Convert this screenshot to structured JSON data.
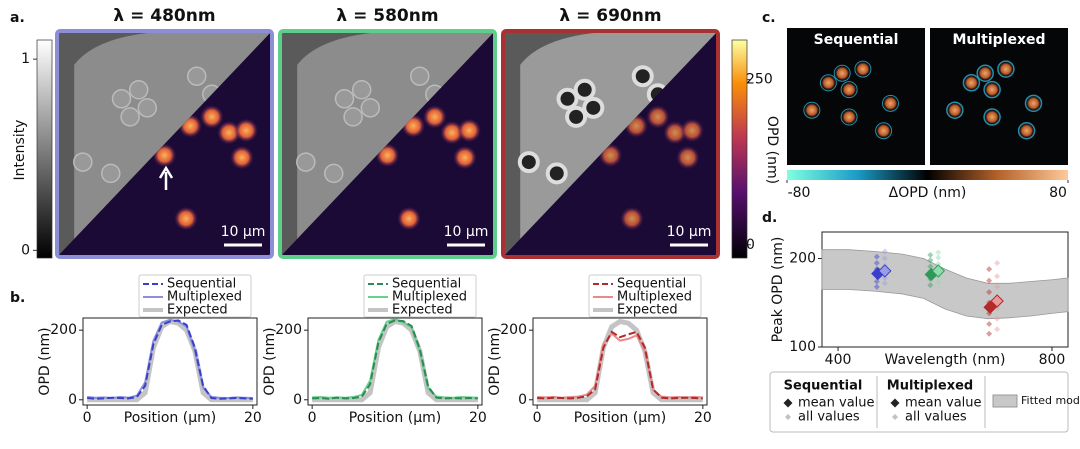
{
  "panel_labels": [
    "a.",
    "b.",
    "c.",
    "d."
  ],
  "panel_a": {
    "titles": [
      "λ = 480nm",
      "λ = 580nm",
      "λ = 690nm"
    ],
    "scale_bar": "10 μm",
    "intensity_bar": {
      "label": "Intensity",
      "lim": [
        -0.04,
        1.1
      ],
      "ticks": [
        0,
        1
      ]
    },
    "opd_bar": {
      "label": "OPD (nm)",
      "lim": [
        -20,
        310
      ],
      "ticks": [
        0,
        250
      ]
    }
  },
  "panel_c": {
    "titles": [
      "Sequential",
      "Multiplexed"
    ],
    "colorbar": {
      "label": "ΔOPD (nm)",
      "lim": [
        -80,
        80
      ],
      "ticks": [
        -80,
        80
      ]
    }
  },
  "chart_data": [
    {
      "type": "line",
      "xlabel": "Position (μm)",
      "ylabel": "OPD (nm)",
      "x": [
        0,
        1,
        2,
        3,
        4,
        5,
        6,
        7,
        8,
        9,
        10,
        11,
        12,
        13,
        14,
        15,
        16,
        17,
        18,
        19,
        20
      ],
      "xlim": [
        -0.5,
        20.5
      ],
      "ylim": [
        -15,
        235
      ],
      "xticks": [
        0,
        20
      ],
      "yticks": [
        0,
        200
      ],
      "series": [
        {
          "name": "Sequential",
          "color": "#3a3fc9",
          "dash": true,
          "values": [
            5,
            3,
            4,
            6,
            5,
            4,
            8,
            40,
            160,
            215,
            225,
            228,
            215,
            150,
            40,
            5,
            3,
            4,
            5,
            4,
            3
          ]
        },
        {
          "name": "Multiplexed",
          "color": "#8b8fe0",
          "values": [
            8,
            6,
            7,
            5,
            8,
            6,
            12,
            50,
            170,
            222,
            230,
            225,
            210,
            140,
            35,
            8,
            6,
            5,
            7,
            6,
            5
          ]
        },
        {
          "name": "Expected",
          "color": "#c4c4c4",
          "values": [
            0,
            0,
            0,
            0,
            0,
            0,
            0,
            20,
            150,
            210,
            225,
            220,
            200,
            140,
            20,
            0,
            0,
            0,
            0,
            0,
            0
          ]
        }
      ]
    },
    {
      "type": "line",
      "xlabel": "Position (μm)",
      "ylabel": "OPD (nm)",
      "x": [
        0,
        1,
        2,
        3,
        4,
        5,
        6,
        7,
        8,
        9,
        10,
        11,
        12,
        13,
        14,
        15,
        16,
        17,
        18,
        19,
        20
      ],
      "xlim": [
        -0.5,
        20.5
      ],
      "ylim": [
        -15,
        235
      ],
      "xticks": [
        0,
        20
      ],
      "yticks": [
        0,
        200
      ],
      "series": [
        {
          "name": "Sequential",
          "color": "#2e8a55",
          "dash": true,
          "values": [
            4,
            5,
            3,
            6,
            4,
            5,
            9,
            45,
            165,
            218,
            228,
            226,
            212,
            145,
            38,
            6,
            4,
            5,
            4,
            5,
            4
          ]
        },
        {
          "name": "Multiplexed",
          "color": "#66d08c",
          "values": [
            7,
            8,
            6,
            7,
            6,
            8,
            14,
            55,
            172,
            224,
            232,
            222,
            208,
            138,
            32,
            9,
            7,
            6,
            8,
            7,
            6
          ]
        },
        {
          "name": "Expected",
          "color": "#c4c4c4",
          "values": [
            0,
            0,
            0,
            0,
            0,
            0,
            0,
            20,
            150,
            210,
            225,
            220,
            200,
            140,
            20,
            0,
            0,
            0,
            0,
            0,
            0
          ]
        }
      ]
    },
    {
      "type": "line",
      "xlabel": "Position (μm)",
      "ylabel": "OPD (nm)",
      "x": [
        0,
        1,
        2,
        3,
        4,
        5,
        6,
        7,
        8,
        9,
        10,
        11,
        12,
        13,
        14,
        15,
        16,
        17,
        18,
        19,
        20
      ],
      "xlim": [
        -0.5,
        20.5
      ],
      "ylim": [
        -15,
        235
      ],
      "xticks": [
        0,
        20
      ],
      "yticks": [
        0,
        200
      ],
      "series": [
        {
          "name": "Sequential",
          "color": "#b22a2a",
          "dash": true,
          "values": [
            5,
            4,
            6,
            5,
            4,
            6,
            10,
            30,
            150,
            195,
            180,
            188,
            195,
            150,
            30,
            6,
            4,
            5,
            6,
            5,
            4
          ]
        },
        {
          "name": "Multiplexed",
          "color": "#e88a8a",
          "values": [
            8,
            7,
            8,
            6,
            8,
            9,
            15,
            40,
            160,
            190,
            170,
            175,
            185,
            140,
            28,
            9,
            7,
            8,
            7,
            8,
            7
          ]
        },
        {
          "name": "Expected",
          "color": "#c4c4c4",
          "values": [
            0,
            0,
            0,
            0,
            0,
            0,
            0,
            20,
            150,
            210,
            225,
            220,
            200,
            140,
            20,
            0,
            0,
            0,
            0,
            0,
            0
          ]
        }
      ]
    },
    {
      "type": "scatter",
      "xlabel": "Wavelength (nm)",
      "ylabel": "Peak OPD (nm)",
      "xlim": [
        370,
        830
      ],
      "ylim": [
        100,
        230
      ],
      "xticks": [
        400,
        800
      ],
      "yticks": [
        100,
        200
      ],
      "colors": [
        "#3a3fc9",
        "#2e9a5a",
        "#b22a2a"
      ],
      "light_colors": [
        "#9a9de6",
        "#8fdcaa",
        "#e89a9a"
      ],
      "fitted_model": {
        "x": [
          370,
          420,
          470,
          520,
          560,
          600,
          640,
          680,
          720,
          760,
          800,
          830
        ],
        "lower": [
          165,
          165,
          163,
          160,
          155,
          143,
          135,
          132,
          133,
          135,
          138,
          140
        ],
        "upper": [
          210,
          210,
          208,
          205,
          200,
          188,
          178,
          172,
          172,
          174,
          176,
          178
        ]
      },
      "sequential_means": {
        "x": [
          480,
          580,
          690
        ],
        "values": [
          183,
          182,
          145
        ]
      },
      "multiplexed_means": {
        "x": [
          480,
          580,
          690
        ],
        "values": [
          186,
          186,
          152
        ]
      },
      "sequential_all": [
        {
          "x": 480,
          "values": [
            168,
            174,
            180,
            188,
            195,
            202
          ]
        },
        {
          "x": 580,
          "values": [
            170,
            177,
            185,
            191,
            198,
            204
          ]
        },
        {
          "x": 690,
          "values": [
            115,
            126,
            138,
            150,
            162,
            175,
            188
          ]
        }
      ],
      "multiplexed_all": [
        {
          "x": 480,
          "values": [
            172,
            178,
            186,
            192,
            200,
            208
          ]
        },
        {
          "x": 580,
          "values": [
            173,
            180,
            188,
            194,
            201,
            207
          ]
        },
        {
          "x": 690,
          "values": [
            120,
            132,
            144,
            156,
            168,
            180,
            195
          ]
        }
      ],
      "legend_groups": [
        {
          "title": "Sequential",
          "entries": [
            "mean value",
            "all values"
          ]
        },
        {
          "title": "Multiplexed",
          "entries": [
            "mean value",
            "all values"
          ]
        },
        {
          "title": "Fitted model"
        }
      ]
    }
  ]
}
